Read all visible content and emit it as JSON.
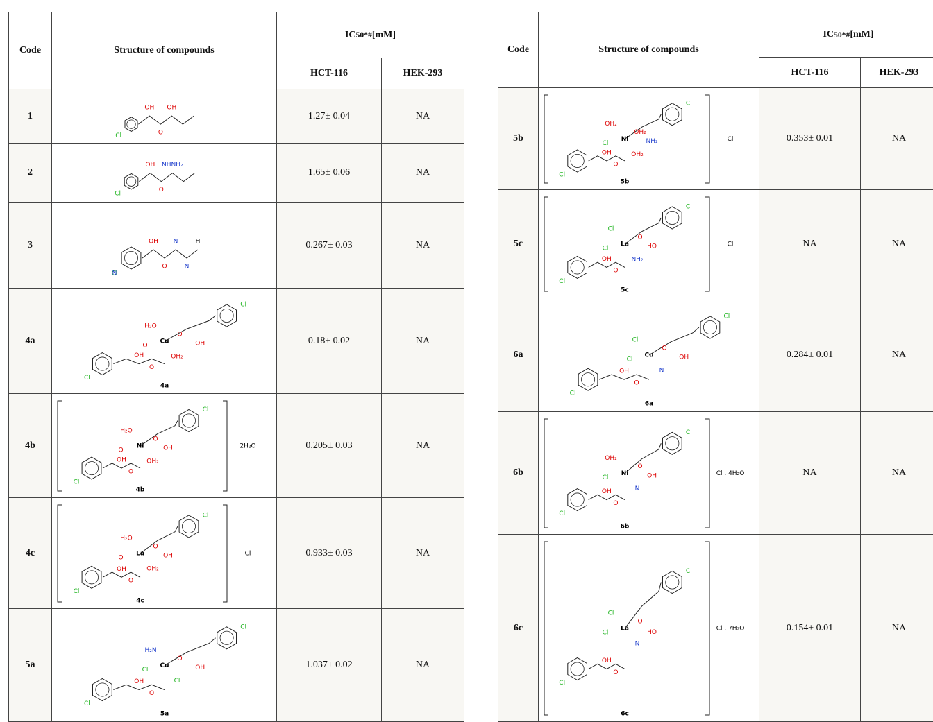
{
  "tables": [
    {
      "header": {
        "code": "Code",
        "structure": "Structure of compounds",
        "ic50": {
          "main": "IC",
          "sub": "50",
          "sup": "*#",
          "unit": "[mM]"
        },
        "cell_lines": [
          "HCT-116",
          "HEK-293"
        ]
      },
      "rows": [
        {
          "code": "1",
          "hct": "1.27± 0.04",
          "hek": "NA",
          "structure": {
            "atoms": [
              "Cl",
              "OH",
              "O",
              "OH"
            ]
          }
        },
        {
          "code": "2",
          "hct": "1.65± 0.06",
          "hek": "NA",
          "structure": {
            "atoms": [
              "Cl",
              "OH",
              "O",
              "NHNH₂"
            ]
          }
        },
        {
          "code": "3",
          "hct": "0.267± 0.03",
          "hek": "NA",
          "structure": {
            "atoms": [
              "Cl",
              "OH",
              "O",
              "N",
              "N",
              "H",
              "N"
            ]
          }
        },
        {
          "code": "4a",
          "hct": "0.18± 0.02",
          "hek": "NA",
          "structure": {
            "atoms": [
              "Cl",
              "OH",
              "O",
              "O",
              "H₂O",
              "OH₂",
              "O",
              "OH",
              "Cl"
            ],
            "metal": "Cu",
            "caption": "4a"
          }
        },
        {
          "code": "4b",
          "hct": "0.205± 0.03",
          "hek": "NA",
          "structure": {
            "atoms": [
              "Cl",
              "OH",
              "O",
              "O",
              "H₂O",
              "OH₂",
              "O",
              "OH",
              "Cl"
            ],
            "metal": "Ni",
            "caption": "4b",
            "counter": "2H₂O"
          }
        },
        {
          "code": "4c",
          "hct": "0.933± 0.03",
          "hek": "NA",
          "structure": {
            "atoms": [
              "Cl",
              "OH",
              "O",
              "O",
              "H₂O",
              "OH₂",
              "O",
              "OH",
              "Cl"
            ],
            "metal": "La",
            "caption": "4c",
            "counter": "Cl"
          }
        },
        {
          "code": "5a",
          "hct": "1.037± 0.02",
          "hek": "NA",
          "structure": {
            "atoms": [
              "Cl",
              "OH",
              "O",
              "Cl",
              "H₂N",
              "Cl",
              "O",
              "OH",
              "Cl"
            ],
            "metal": "Cu",
            "caption": "5a"
          }
        }
      ]
    },
    {
      "header": {
        "code": "Code",
        "structure": "Structure of compounds",
        "ic50": {
          "main": "IC",
          "sub": "50",
          "sup": "*#",
          "unit": "[mM]"
        },
        "cell_lines": [
          "HCT-116",
          "HEK-293"
        ]
      },
      "rows": [
        {
          "code": "5b",
          "hct": "0.353± 0.01",
          "hek": "NA",
          "structure": {
            "atoms": [
              "Cl",
              "OH",
              "O",
              "Cl",
              "OH₂",
              "OH₂",
              "OH₂",
              "NH₂",
              "Cl"
            ],
            "metal": "Ni",
            "caption": "5b",
            "counter": "Cl"
          }
        },
        {
          "code": "5c",
          "hct": "NA",
          "hek": "NA",
          "structure": {
            "atoms": [
              "Cl",
              "OH",
              "O",
              "Cl",
              "Cl",
              "NH₂",
              "O",
              "HO",
              "Cl"
            ],
            "metal": "La",
            "caption": "5c",
            "counter": "Cl"
          }
        },
        {
          "code": "6a",
          "hct": "0.284± 0.01",
          "hek": "NA",
          "structure": {
            "atoms": [
              "Cl",
              "OH",
              "O",
              "Cl",
              "Cl",
              "N",
              "O",
              "OH",
              "Cl"
            ],
            "metal": "Cu",
            "caption": "6a"
          }
        },
        {
          "code": "6b",
          "hct": "NA",
          "hek": "NA",
          "structure": {
            "atoms": [
              "Cl",
              "OH",
              "O",
              "Cl",
              "OH₂",
              "N",
              "O",
              "OH",
              "Cl"
            ],
            "metal": "Ni",
            "caption": "6b",
            "counter": "Cl . 4H₂O"
          }
        },
        {
          "code": "6c",
          "hct": "0.154± 0.01",
          "hek": "NA",
          "structure": {
            "atoms": [
              "Cl",
              "OH",
              "O",
              "Cl",
              "Cl",
              "N",
              "O",
              "HO",
              "Cl"
            ],
            "metal": "La",
            "caption": "6c",
            "counter": "Cl . 7H₂O"
          }
        }
      ]
    }
  ]
}
